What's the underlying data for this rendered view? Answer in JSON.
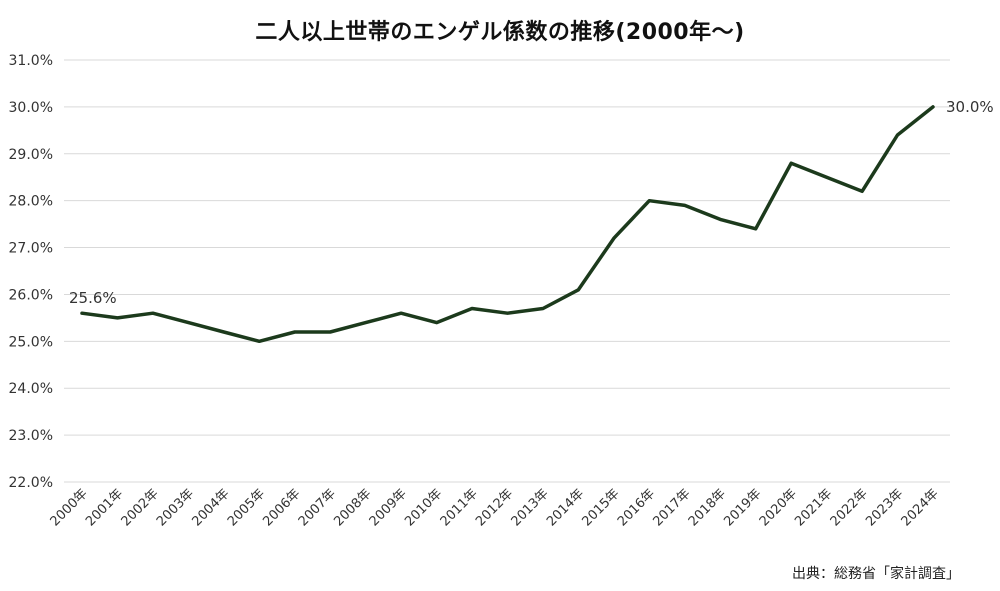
{
  "chart_data": {
    "type": "line",
    "title": "二人以上世帯のエンゲル係数の推移(2000年～)",
    "xlabel": "",
    "ylabel": "",
    "ylim": [
      22.0,
      31.0
    ],
    "yticks": [
      "22.0%",
      "23.0%",
      "24.0%",
      "25.0%",
      "26.0%",
      "27.0%",
      "28.0%",
      "29.0%",
      "30.0%",
      "31.0%"
    ],
    "grid": true,
    "legend": "none",
    "categories": [
      "2000年",
      "2001年",
      "2002年",
      "2003年",
      "2004年",
      "2005年",
      "2006年",
      "2007年",
      "2008年",
      "2009年",
      "2010年",
      "2011年",
      "2012年",
      "2013年",
      "2014年",
      "2015年",
      "2016年",
      "2017年",
      "2018年",
      "2019年",
      "2020年",
      "2021年",
      "2022年",
      "2023年",
      "2024年"
    ],
    "series": [
      {
        "name": "エンゲル係数",
        "color": "#1c3a1c",
        "values": [
          25.6,
          25.5,
          25.6,
          25.4,
          25.2,
          25.0,
          25.2,
          25.2,
          25.4,
          25.6,
          25.4,
          25.7,
          25.6,
          25.7,
          26.1,
          27.2,
          28.0,
          27.9,
          27.6,
          27.4,
          28.8,
          28.5,
          28.2,
          29.4,
          30.0
        ]
      }
    ],
    "annotations": [
      {
        "category": "2000年",
        "text": "25.6%"
      },
      {
        "category": "2024年",
        "text": "30.0%"
      }
    ],
    "source": "出典：総務省「家計調査」"
  },
  "colors": {
    "line": "#1c3a1c",
    "grid": "#d9d9d9",
    "text": "#333333"
  }
}
